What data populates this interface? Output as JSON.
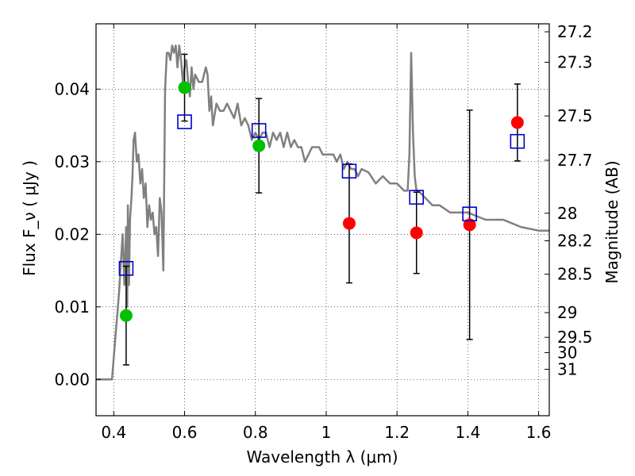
{
  "chart_data": {
    "type": "scatter",
    "xlabel": "Wavelength  λ (μm)",
    "ylabel": "Flux  F_ν  ( μJy )",
    "y2label": "Magnitude (AB)",
    "xlim": [
      0.35,
      1.63
    ],
    "ylim": [
      -0.005,
      0.049
    ],
    "grid": true,
    "x_ticks": [
      {
        "v": 0.4,
        "label": "0.4"
      },
      {
        "v": 0.6,
        "label": "0.6"
      },
      {
        "v": 0.8,
        "label": "0.8"
      },
      {
        "v": 1.0,
        "label": "1"
      },
      {
        "v": 1.2,
        "label": "1.2"
      },
      {
        "v": 1.4,
        "label": "1.4"
      },
      {
        "v": 1.6,
        "label": "1.6"
      }
    ],
    "y_ticks": [
      {
        "v": 0.0,
        "label": "0.00"
      },
      {
        "v": 0.01,
        "label": "0.01"
      },
      {
        "v": 0.02,
        "label": "0.02"
      },
      {
        "v": 0.03,
        "label": "0.03"
      },
      {
        "v": 0.04,
        "label": "0.04"
      }
    ],
    "mag_ticks": [
      {
        "flux": 0.0479,
        "label": "27.2"
      },
      {
        "flux": 0.0437,
        "label": "27.3"
      },
      {
        "flux": 0.0363,
        "label": "27.5"
      },
      {
        "flux": 0.0302,
        "label": "27.7"
      },
      {
        "flux": 0.0229,
        "label": "28"
      },
      {
        "flux": 0.0191,
        "label": "28.2"
      },
      {
        "flux": 0.0145,
        "label": "28.5"
      },
      {
        "flux": 0.0092,
        "label": "29"
      },
      {
        "flux": 0.0058,
        "label": "29.5"
      },
      {
        "flux": 0.0037,
        "label": "30"
      },
      {
        "flux": 0.0014,
        "label": "31"
      }
    ],
    "series": [
      {
        "type": "line",
        "color": "#808080",
        "x": [
          0.35,
          0.395,
          0.4,
          0.405,
          0.41,
          0.415,
          0.42,
          0.425,
          0.43,
          0.435,
          0.438,
          0.44,
          0.443,
          0.446,
          0.45,
          0.453,
          0.456,
          0.46,
          0.465,
          0.47,
          0.475,
          0.48,
          0.485,
          0.49,
          0.495,
          0.5,
          0.505,
          0.51,
          0.515,
          0.52,
          0.525,
          0.53,
          0.535,
          0.54,
          0.545,
          0.55,
          0.555,
          0.56,
          0.565,
          0.57,
          0.575,
          0.58,
          0.585,
          0.59,
          0.595,
          0.6,
          0.605,
          0.61,
          0.615,
          0.62,
          0.625,
          0.63,
          0.64,
          0.65,
          0.66,
          0.665,
          0.67,
          0.675,
          0.68,
          0.69,
          0.7,
          0.71,
          0.72,
          0.73,
          0.74,
          0.75,
          0.76,
          0.77,
          0.78,
          0.79,
          0.8,
          0.81,
          0.82,
          0.83,
          0.84,
          0.85,
          0.86,
          0.87,
          0.88,
          0.89,
          0.9,
          0.91,
          0.92,
          0.93,
          0.94,
          0.95,
          0.96,
          0.97,
          0.98,
          0.99,
          1.0,
          1.01,
          1.02,
          1.03,
          1.04,
          1.05,
          1.06,
          1.07,
          1.08,
          1.09,
          1.1,
          1.12,
          1.14,
          1.16,
          1.18,
          1.2,
          1.22,
          1.23,
          1.235,
          1.24,
          1.245,
          1.25,
          1.255,
          1.26,
          1.28,
          1.3,
          1.32,
          1.35,
          1.4,
          1.45,
          1.5,
          1.55,
          1.6,
          1.63
        ],
        "y": [
          0.0,
          0.0,
          0.003,
          0.006,
          0.009,
          0.012,
          0.016,
          0.02,
          0.013,
          0.021,
          0.01,
          0.024,
          0.013,
          0.022,
          0.025,
          0.028,
          0.033,
          0.034,
          0.03,
          0.031,
          0.027,
          0.029,
          0.025,
          0.027,
          0.021,
          0.024,
          0.022,
          0.023,
          0.02,
          0.021,
          0.017,
          0.025,
          0.023,
          0.015,
          0.04,
          0.045,
          0.045,
          0.044,
          0.046,
          0.045,
          0.046,
          0.043,
          0.046,
          0.044,
          0.041,
          0.043,
          0.044,
          0.041,
          0.039,
          0.043,
          0.04,
          0.042,
          0.041,
          0.041,
          0.043,
          0.042,
          0.037,
          0.039,
          0.035,
          0.038,
          0.037,
          0.037,
          0.038,
          0.037,
          0.036,
          0.038,
          0.035,
          0.036,
          0.035,
          0.033,
          0.034,
          0.033,
          0.034,
          0.034,
          0.032,
          0.034,
          0.033,
          0.034,
          0.032,
          0.034,
          0.032,
          0.033,
          0.032,
          0.032,
          0.03,
          0.031,
          0.032,
          0.032,
          0.032,
          0.031,
          0.031,
          0.031,
          0.031,
          0.03,
          0.031,
          0.029,
          0.03,
          0.029,
          0.029,
          0.028,
          0.029,
          0.0285,
          0.027,
          0.028,
          0.027,
          0.027,
          0.026,
          0.026,
          0.031,
          0.045,
          0.034,
          0.028,
          0.026,
          0.026,
          0.025,
          0.024,
          0.024,
          0.023,
          0.023,
          0.022,
          0.022,
          0.021,
          0.0205,
          0.0205
        ]
      },
      {
        "type": "errorbar",
        "color": "#000000",
        "x": [
          0.435,
          0.6,
          0.81,
          1.065,
          1.255,
          1.405,
          1.54
        ],
        "y": [
          0.0088,
          0.0402,
          0.0322,
          0.0215,
          0.0202,
          0.0213,
          0.0354
        ],
        "yerr": [
          0.0068,
          0.0046,
          0.0065,
          0.0082,
          0.0056,
          0.0158,
          0.0053
        ]
      },
      {
        "type": "scatter",
        "marker": "circle",
        "color": "#00c000",
        "x": [
          0.435,
          0.6,
          0.81
        ],
        "y": [
          0.0088,
          0.0402,
          0.0322
        ]
      },
      {
        "type": "scatter",
        "marker": "circle",
        "color": "#ff0000",
        "x": [
          1.065,
          1.255,
          1.405,
          1.54
        ],
        "y": [
          0.0215,
          0.0202,
          0.0213,
          0.0354
        ]
      },
      {
        "type": "scatter",
        "marker": "open-square",
        "color": "#0000cc",
        "x": [
          0.435,
          0.6,
          0.81,
          1.065,
          1.255,
          1.405,
          1.54
        ],
        "y": [
          0.0153,
          0.0355,
          0.0343,
          0.0287,
          0.0251,
          0.0228,
          0.0328
        ]
      }
    ]
  }
}
